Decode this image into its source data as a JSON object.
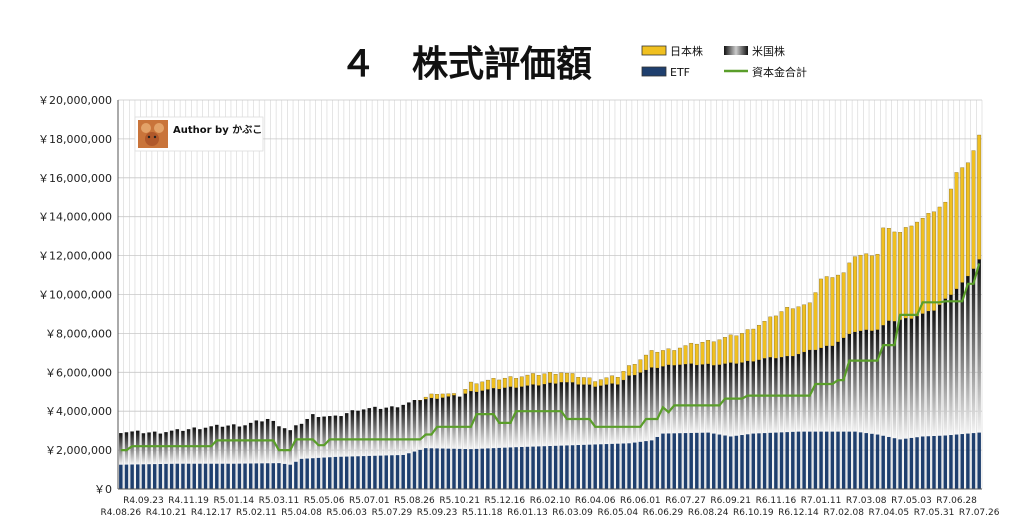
{
  "chart_data": {
    "type": "bar",
    "title": "４　株式評価額",
    "author": "Author by かぶこ",
    "ylim": [
      0,
      20000000
    ],
    "y_ticks": [
      0,
      2000000,
      4000000,
      6000000,
      8000000,
      10000000,
      12000000,
      14000000,
      16000000,
      18000000,
      20000000
    ],
    "y_tick_labels": [
      "￥0",
      "￥2,000,000",
      "￥4,000,000",
      "￥6,000,000",
      "￥8,000,000",
      "￥10,000,000",
      "￥12,000,000",
      "￥14,000,000",
      "￥16,000,000",
      "￥18,000,000",
      "￥20,000,000"
    ],
    "x_labels_top": [
      "R4.09.23",
      "R4.11.19",
      "R5.01.14",
      "R5.03.11",
      "R5.05.06",
      "R5.07.01",
      "R5.08.26",
      "R5.10.21",
      "R5.12.16",
      "R6.02.10",
      "R6.04.06",
      "R6.06.01",
      "R6.07.27",
      "R6.09.21",
      "R6.11.16",
      "R7.01.11",
      "R7.03.08",
      "R7.05.03",
      "R7.06.28"
    ],
    "x_labels_bottom": [
      "R4.08.26",
      "R4.10.21",
      "R4.12.17",
      "R5.02.11",
      "R5.04.08",
      "R5.06.03",
      "R5.07.29",
      "R5.09.23",
      "R5.11.18",
      "R6.01.13",
      "R6.03.09",
      "R6.05.04",
      "R6.06.29",
      "R6.08.24",
      "R6.10.19",
      "R6.12.14",
      "R7.02.08",
      "R7.04.05",
      "R7.05.31",
      "R7.07.26"
    ],
    "legend_position": "top-right",
    "grid": true,
    "series": [
      {
        "name": "日本株",
        "type": "bar-stacked",
        "color": "#f0c020"
      },
      {
        "name": "米国株",
        "type": "bar-stacked",
        "color": "#444444"
      },
      {
        "name": "ETF",
        "type": "bar-stacked",
        "color": "#1f3f6e"
      },
      {
        "name": "資本金合計",
        "type": "line",
        "color": "#5a9e2a"
      }
    ],
    "bar_count": 153,
    "totals_keyframes": [
      [
        0,
        2950000
      ],
      [
        6,
        2900000
      ],
      [
        10,
        3000000
      ],
      [
        14,
        3150000
      ],
      [
        18,
        3250000
      ],
      [
        22,
        3300000
      ],
      [
        26,
        3600000
      ],
      [
        30,
        3000000
      ],
      [
        34,
        3800000
      ],
      [
        38,
        3700000
      ],
      [
        42,
        4100000
      ],
      [
        48,
        4200000
      ],
      [
        52,
        4500000
      ],
      [
        56,
        4950000
      ],
      [
        60,
        4800000
      ],
      [
        62,
        5450000
      ],
      [
        68,
        5700000
      ],
      [
        74,
        5900000
      ],
      [
        78,
        6000000
      ],
      [
        84,
        5600000
      ],
      [
        88,
        5800000
      ],
      [
        90,
        6300000
      ],
      [
        94,
        7050000
      ],
      [
        98,
        7200000
      ],
      [
        102,
        7500000
      ],
      [
        106,
        7700000
      ],
      [
        110,
        8000000
      ],
      [
        114,
        8600000
      ],
      [
        118,
        9300000
      ],
      [
        122,
        9500000
      ],
      [
        124,
        10800000
      ],
      [
        128,
        11100000
      ],
      [
        130,
        12000000
      ],
      [
        134,
        12100000
      ],
      [
        135,
        13400000
      ],
      [
        138,
        13200000
      ],
      [
        140,
        13600000
      ],
      [
        142,
        13900000
      ],
      [
        144,
        14300000
      ],
      [
        146,
        14700000
      ],
      [
        148,
        16300000
      ],
      [
        150,
        16700000
      ],
      [
        152,
        18200000
      ]
    ],
    "etf_keyframes": [
      [
        0,
        1250000
      ],
      [
        10,
        1300000
      ],
      [
        20,
        1300000
      ],
      [
        28,
        1330000
      ],
      [
        30,
        1250000
      ],
      [
        32,
        1550000
      ],
      [
        38,
        1650000
      ],
      [
        50,
        1750000
      ],
      [
        54,
        2100000
      ],
      [
        62,
        2050000
      ],
      [
        70,
        2150000
      ],
      [
        80,
        2250000
      ],
      [
        90,
        2350000
      ],
      [
        94,
        2500000
      ],
      [
        96,
        2850000
      ],
      [
        104,
        2900000
      ],
      [
        108,
        2700000
      ],
      [
        112,
        2850000
      ],
      [
        120,
        2950000
      ],
      [
        126,
        2950000
      ],
      [
        130,
        2950000
      ],
      [
        134,
        2800000
      ],
      [
        138,
        2550000
      ],
      [
        142,
        2700000
      ],
      [
        146,
        2750000
      ],
      [
        150,
        2850000
      ],
      [
        152,
        2900000
      ]
    ],
    "us_keyframes": [
      [
        0,
        2950000
      ],
      [
        60,
        4800000
      ],
      [
        62,
        5000000
      ],
      [
        68,
        5200000
      ],
      [
        74,
        5350000
      ],
      [
        78,
        5500000
      ],
      [
        84,
        5300000
      ],
      [
        88,
        5400000
      ],
      [
        90,
        5800000
      ],
      [
        94,
        6200000
      ],
      [
        98,
        6400000
      ],
      [
        102,
        6400000
      ],
      [
        106,
        6400000
      ],
      [
        110,
        6500000
      ],
      [
        114,
        6700000
      ],
      [
        118,
        6800000
      ],
      [
        122,
        7100000
      ],
      [
        126,
        7400000
      ],
      [
        130,
        8100000
      ],
      [
        134,
        8200000
      ],
      [
        136,
        8600000
      ],
      [
        140,
        8800000
      ],
      [
        144,
        9200000
      ],
      [
        148,
        10300000
      ],
      [
        150,
        10900000
      ],
      [
        152,
        11800000
      ]
    ],
    "capital_keyframes": [
      [
        0,
        2000000
      ],
      [
        2,
        2200000
      ],
      [
        16,
        2200000
      ],
      [
        17,
        2500000
      ],
      [
        27,
        2500000
      ],
      [
        28,
        2000000
      ],
      [
        30,
        2000000
      ],
      [
        31,
        2550000
      ],
      [
        34,
        2550000
      ],
      [
        35,
        2250000
      ],
      [
        36,
        2250000
      ],
      [
        37,
        2550000
      ],
      [
        53,
        2550000
      ],
      [
        54,
        2800000
      ],
      [
        55,
        2800000
      ],
      [
        56,
        3200000
      ],
      [
        62,
        3200000
      ],
      [
        63,
        3850000
      ],
      [
        66,
        3850000
      ],
      [
        67,
        3400000
      ],
      [
        69,
        3400000
      ],
      [
        70,
        4000000
      ],
      [
        78,
        4000000
      ],
      [
        79,
        3600000
      ],
      [
        83,
        3600000
      ],
      [
        84,
        3200000
      ],
      [
        92,
        3200000
      ],
      [
        93,
        3600000
      ],
      [
        95,
        3600000
      ],
      [
        96,
        4200000
      ],
      [
        97,
        3950000
      ],
      [
        98,
        4300000
      ],
      [
        106,
        4300000
      ],
      [
        107,
        4650000
      ],
      [
        110,
        4650000
      ],
      [
        111,
        4800000
      ],
      [
        122,
        4800000
      ],
      [
        123,
        5400000
      ],
      [
        126,
        5400000
      ],
      [
        127,
        5600000
      ],
      [
        128,
        5600000
      ],
      [
        129,
        6600000
      ],
      [
        134,
        6600000
      ],
      [
        135,
        7400000
      ],
      [
        137,
        7400000
      ],
      [
        138,
        8950000
      ],
      [
        141,
        8950000
      ],
      [
        142,
        9600000
      ],
      [
        145,
        9600000
      ],
      [
        146,
        9650000
      ],
      [
        149,
        9650000
      ],
      [
        150,
        10550000
      ],
      [
        151,
        10550000
      ],
      [
        152,
        11600000
      ]
    ]
  }
}
